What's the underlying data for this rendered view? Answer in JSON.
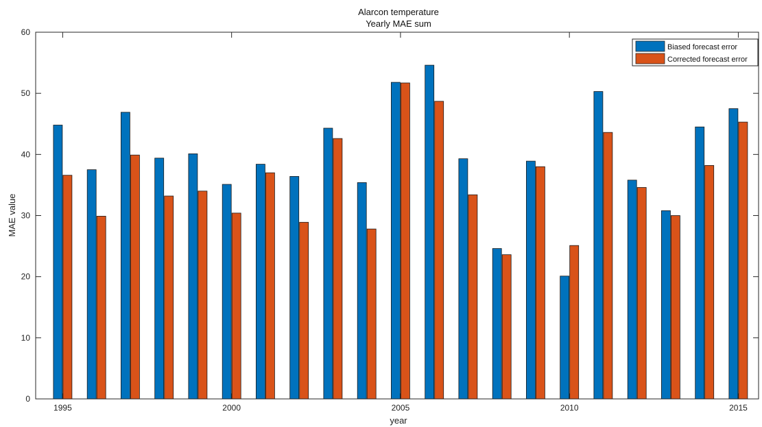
{
  "chart_data": {
    "type": "bar",
    "title": "Alarcon temperature",
    "subtitle": "Yearly MAE sum",
    "xlabel": "year",
    "ylabel": "MAE value",
    "x": [
      1995,
      1996,
      1997,
      1998,
      1999,
      2000,
      2001,
      2002,
      2003,
      2004,
      2005,
      2006,
      2007,
      2008,
      2009,
      2010,
      2011,
      2012,
      2013,
      2014,
      2015
    ],
    "x_ticks": [
      "1995",
      "2000",
      "2005",
      "2010",
      "2015"
    ],
    "xlim": [
      1994.9,
      1995.2
    ],
    "ylim": [
      0,
      60
    ],
    "y_ticks": [
      0,
      10,
      20,
      30,
      40,
      50,
      60
    ],
    "grid": false,
    "legend_position": "top-right",
    "series": [
      {
        "name": "Biased forecast error",
        "color": "#0072BD",
        "values": [
          44.8,
          37.5,
          46.9,
          39.4,
          40.1,
          35.1,
          38.4,
          36.4,
          44.3,
          35.4,
          51.8,
          54.6,
          39.3,
          24.6,
          38.9,
          20.1,
          50.3,
          35.8,
          30.8,
          44.5,
          47.5
        ]
      },
      {
        "name": "Corrected forecast error",
        "color": "#D95319",
        "values": [
          36.6,
          29.9,
          39.9,
          33.2,
          34.0,
          30.4,
          37.0,
          28.9,
          42.6,
          27.8,
          51.7,
          48.7,
          33.4,
          23.6,
          38.0,
          25.1,
          43.6,
          34.6,
          30.0,
          38.2,
          45.3
        ]
      }
    ]
  }
}
